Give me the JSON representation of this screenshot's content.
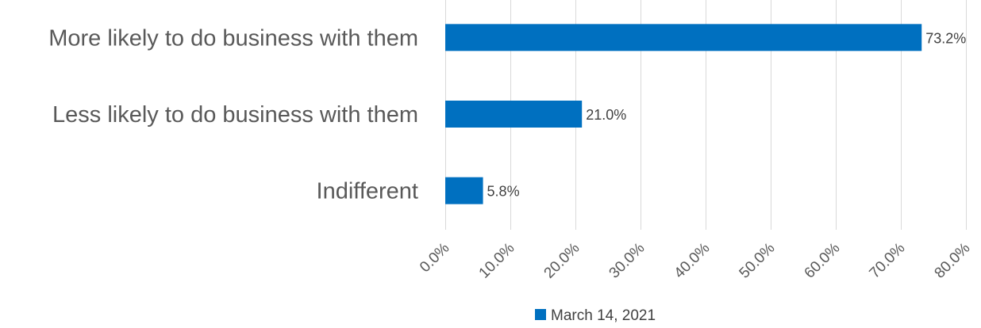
{
  "chart_data": {
    "type": "bar",
    "orientation": "horizontal",
    "categories": [
      "More likely to do business with them",
      "Less likely to do business with them",
      "Indifferent"
    ],
    "series": [
      {
        "name": "March 14, 2021",
        "values": [
          73.2,
          21.0,
          5.8
        ],
        "color": "#0070c0"
      }
    ],
    "data_labels": [
      "73.2%",
      "21.0%",
      "5.8%"
    ],
    "xlim": [
      0,
      80
    ],
    "x_ticks": [
      0,
      10,
      20,
      30,
      40,
      50,
      60,
      70,
      80
    ],
    "x_tick_labels": [
      "0.0%",
      "10.0%",
      "20.0%",
      "30.0%",
      "40.0%",
      "50.0%",
      "60.0%",
      "70.0%",
      "80.0%"
    ],
    "grid": true,
    "legend_position": "bottom"
  }
}
